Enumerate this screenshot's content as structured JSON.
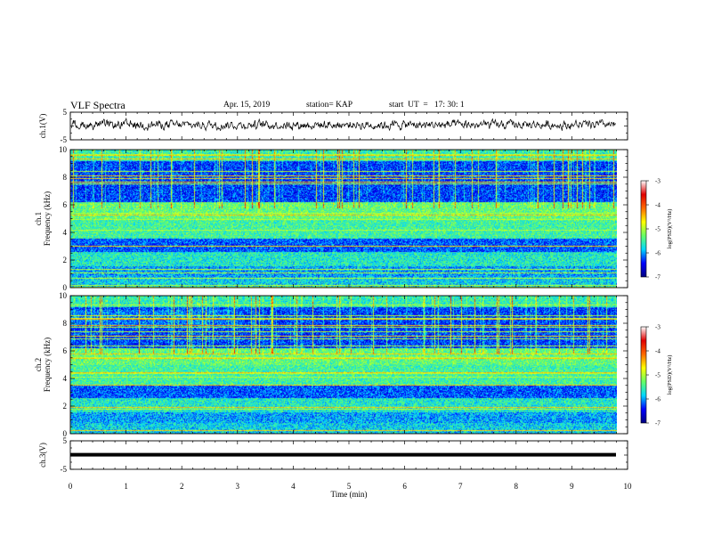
{
  "header": {
    "title": "VLF Spectra",
    "date": "Apr. 15, 2019",
    "station": "station= KAP",
    "start": "start  UT  =   17: 30: 1"
  },
  "chart_data": [
    {
      "type": "line",
      "panel": "ch1",
      "ylabel": "ch.1(V)",
      "xlim": [
        0,
        10
      ],
      "ylim": [
        -5,
        5
      ],
      "yticks": [
        "5",
        "-5"
      ],
      "description_amplitude_V": 1.5
    },
    {
      "type": "heatmap",
      "panel": "ch1-spectrogram",
      "ylabel_top": "ch.1",
      "ylabel": "Frequency (kHz)",
      "xlim": [
        0,
        9.85
      ],
      "ylim": [
        0,
        10
      ],
      "yticks": [
        "0",
        "2",
        "4",
        "6",
        "8",
        "10"
      ],
      "colorbar": {
        "ticks": [
          "-3",
          "-4",
          "-5",
          "-6",
          "-7"
        ],
        "label": "log(PSD)(V²/Hz)",
        "range": [
          -7,
          -3
        ]
      }
    },
    {
      "type": "heatmap",
      "panel": "ch2-spectrogram",
      "ylabel_top": "ch.2",
      "ylabel": "Frequency (kHz)",
      "xlim": [
        0,
        9.85
      ],
      "ylim": [
        0,
        10
      ],
      "yticks": [
        "0",
        "2",
        "4",
        "6",
        "8",
        "10"
      ],
      "colorbar": {
        "ticks": [
          "-3",
          "-4",
          "-5",
          "-6",
          "-7"
        ],
        "label": "log(PSD)(V²/Hz)",
        "range": [
          -7,
          -3
        ]
      }
    },
    {
      "type": "line",
      "panel": "ch3",
      "ylabel": "ch.3(V)",
      "xlim": [
        0,
        10
      ],
      "ylim": [
        -5,
        5
      ],
      "yticks": [
        "5",
        "-5"
      ],
      "constant_value": 0.1
    }
  ],
  "xaxis": {
    "label": "Time (min)",
    "ticks": [
      "0",
      "1",
      "2",
      "3",
      "4",
      "5",
      "6",
      "7",
      "8",
      "9",
      "10"
    ]
  },
  "colors": {
    "colormap": [
      "#00007f",
      "#0000ff",
      "#00d7ff",
      "#66ff66",
      "#ffff00",
      "#ff6a00",
      "#e00000",
      "#ffffff"
    ]
  }
}
